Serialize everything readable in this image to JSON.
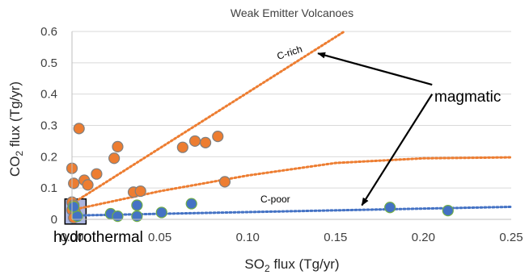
{
  "chart_data": {
    "type": "scatter",
    "title": "Weak Emitter Volcanoes",
    "xlabel": {
      "prefix": "SO",
      "sub": "2",
      "suffix": " flux (Tg/yr)"
    },
    "ylabel": {
      "prefix": "CO",
      "sub": "2",
      "suffix": " flux (Tg/yr)"
    },
    "xlim": [
      0,
      0.25
    ],
    "ylim": [
      0,
      0.6
    ],
    "xticks": [
      0.0,
      0.05,
      0.1,
      0.15,
      0.2,
      0.25
    ],
    "xtick_labels": [
      "0.00",
      "0.05",
      "0.10",
      "0.15",
      "0.20",
      "0.25"
    ],
    "yticks": [
      0,
      0.1,
      0.2,
      0.3,
      0.4,
      0.5,
      0.6
    ],
    "ytick_labels": [
      "0",
      "0.1",
      "0.2",
      "0.3",
      "0.4",
      "0.5",
      "0.6"
    ],
    "grid": {
      "horizontal": true,
      "vertical": false
    },
    "colors": {
      "orange": "#ED7D31",
      "blue": "#4472C4",
      "blue_marker": "#4472C4",
      "blue_edge": "#70AD47",
      "orange_edge": "#7F7F7F",
      "grid": "#D9D9D9",
      "box_fill": "#8E9BD6",
      "box_edge": "#000000"
    },
    "series": [
      {
        "marker_color": "#ED7D31",
        "points": [
          {
            "x": 0.004,
            "y": 0.29
          },
          {
            "x": 0.0,
            "y": 0.163
          },
          {
            "x": 0.001,
            "y": 0.115
          },
          {
            "x": 0.007,
            "y": 0.125
          },
          {
            "x": 0.009,
            "y": 0.11
          },
          {
            "x": 0.014,
            "y": 0.145
          },
          {
            "x": 0.024,
            "y": 0.195
          },
          {
            "x": 0.026,
            "y": 0.232
          },
          {
            "x": 0.035,
            "y": 0.087
          },
          {
            "x": 0.039,
            "y": 0.09
          },
          {
            "x": 0.063,
            "y": 0.23
          },
          {
            "x": 0.07,
            "y": 0.25
          },
          {
            "x": 0.076,
            "y": 0.245
          },
          {
            "x": 0.083,
            "y": 0.265
          },
          {
            "x": 0.087,
            "y": 0.12
          },
          {
            "x": 0.0,
            "y": 0.055
          },
          {
            "x": 0.001,
            "y": 0.045
          },
          {
            "x": 0.0,
            "y": 0.03
          },
          {
            "x": 0.002,
            "y": 0.02
          },
          {
            "x": 0.001,
            "y": 0.005
          }
        ]
      },
      {
        "marker_color": "#4472C4",
        "points": [
          {
            "x": 0.022,
            "y": 0.018
          },
          {
            "x": 0.026,
            "y": 0.01
          },
          {
            "x": 0.037,
            "y": 0.045
          },
          {
            "x": 0.037,
            "y": 0.01
          },
          {
            "x": 0.051,
            "y": 0.022
          },
          {
            "x": 0.068,
            "y": 0.05
          },
          {
            "x": 0.181,
            "y": 0.038
          },
          {
            "x": 0.214,
            "y": 0.028
          },
          {
            "x": 0.003,
            "y": 0.01
          },
          {
            "x": 0.001,
            "y": 0.04
          }
        ]
      }
    ],
    "trendlines": [
      {
        "color": "#ED7D31",
        "points": [
          [
            0.0,
            0.05
          ],
          [
            0.155,
            0.6
          ]
        ]
      },
      {
        "color": "#ED7D31",
        "points": [
          [
            0.0,
            0.03
          ],
          [
            0.05,
            0.09
          ],
          [
            0.1,
            0.14
          ],
          [
            0.15,
            0.18
          ],
          [
            0.2,
            0.195
          ],
          [
            0.25,
            0.198
          ]
        ]
      },
      {
        "color": "#4472C4",
        "points": [
          [
            0.0,
            0.012
          ],
          [
            0.25,
            0.04
          ]
        ]
      }
    ],
    "annotations": {
      "c_rich": {
        "text": "C-rich",
        "x": 0.125,
        "y": 0.525
      },
      "c_poor": {
        "text": "C-poor",
        "x": 0.105,
        "y": 0.06
      },
      "magmatic": {
        "text": "magmatic"
      },
      "hydrothermal": {
        "text": "hydrothermal"
      }
    },
    "arrows": [
      {
        "from_data": [
          0.205,
          0.43
        ],
        "to_data": [
          0.14,
          0.53
        ]
      },
      {
        "from_data": [
          0.205,
          0.4
        ],
        "to_data": [
          0.165,
          0.045
        ]
      }
    ],
    "hydrothermal_box": {
      "x0": -0.004,
      "x1": 0.008,
      "y0": -0.015,
      "y1": 0.065
    }
  }
}
